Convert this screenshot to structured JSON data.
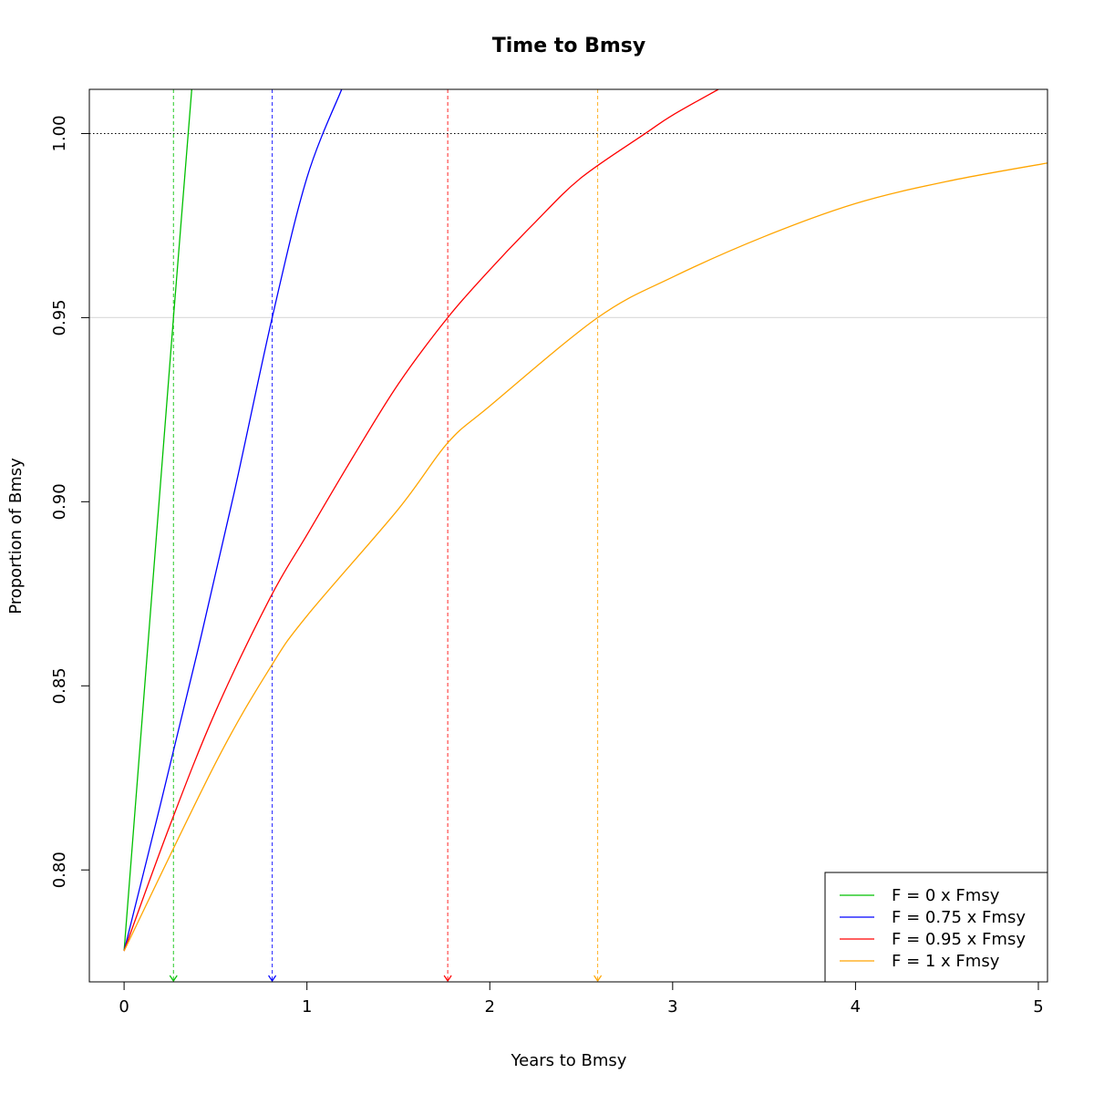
{
  "chart_data": {
    "type": "line",
    "title": "Time to Bmsy",
    "xlabel": "Years to Bmsy",
    "ylabel": "Proportion of Bmsy",
    "xlim": [
      -0.19,
      5.05
    ],
    "ylim": [
      0.7696,
      1.012
    ],
    "x_ticks": [
      0,
      1,
      2,
      3,
      4,
      5
    ],
    "x_tick_labels": [
      "0",
      "1",
      "2",
      "3",
      "4",
      "5"
    ],
    "y_ticks": [
      0.8,
      0.85,
      0.9,
      0.95,
      1.0
    ],
    "y_tick_labels": [
      "0.80",
      "0.85",
      "0.90",
      "0.95",
      "1.00"
    ],
    "start_value": 0.778,
    "reference_lines": [
      {
        "axis": "y",
        "value": 1.0,
        "style": "dotted",
        "color": "#000000"
      },
      {
        "axis": "y",
        "value": 0.95,
        "style": "solid",
        "color": "#dddddd"
      }
    ],
    "series": [
      {
        "name": "F = 0 x Fmsy",
        "color": "#00c000",
        "x": [
          0,
          0.27,
          0.37
        ],
        "y": [
          0.778,
          0.95,
          1.012
        ],
        "time_to_95": 0.27
      },
      {
        "name": "F = 0.75 x Fmsy",
        "color": "#0000ff",
        "x": [
          0,
          0.2,
          0.4,
          0.6,
          0.81,
          1.0,
          1.19
        ],
        "y": [
          0.778,
          0.818,
          0.859,
          0.902,
          0.95,
          0.988,
          1.012
        ],
        "time_to_95": 0.81
      },
      {
        "name": "F = 0.95 x Fmsy",
        "color": "#ff0000",
        "x": [
          0,
          0.25,
          0.5,
          0.8,
          1.0,
          1.25,
          1.5,
          1.77,
          2.0,
          2.25,
          2.5,
          2.85,
          3.0,
          3.25
        ],
        "y": [
          0.778,
          0.812,
          0.843,
          0.874,
          0.891,
          0.912,
          0.932,
          0.95,
          0.963,
          0.976,
          0.988,
          1.0,
          1.005,
          1.012
        ],
        "time_to_95": 1.77
      },
      {
        "name": "F = 1 x Fmsy",
        "color": "#ffa500",
        "x": [
          0,
          0.5,
          0.8,
          1.0,
          1.5,
          1.77,
          2.0,
          2.59,
          3.0,
          3.5,
          4.0,
          4.5,
          5.05
        ],
        "y": [
          0.778,
          0.829,
          0.855,
          0.869,
          0.898,
          0.916,
          0.926,
          0.95,
          0.961,
          0.972,
          0.981,
          0.987,
          0.992
        ],
        "time_to_95": 2.59
      }
    ],
    "legend": {
      "position": "bottom-right"
    },
    "grid": false
  }
}
